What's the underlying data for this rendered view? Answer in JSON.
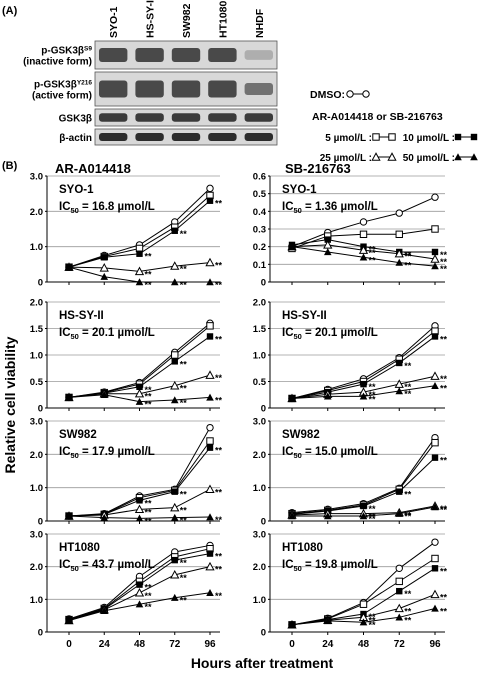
{
  "figure": {
    "panel_a_label": "(A)",
    "panel_b_label": "(B)"
  },
  "western_blot": {
    "lanes": [
      "SYO-1",
      "HS-SY-II",
      "SW982",
      "HT1080",
      "NHDF"
    ],
    "rows": [
      {
        "label_lines": [
          "p-GSK3β",
          "(inactive form)"
        ],
        "sup": "S9"
      },
      {
        "label_lines": [
          "p-GSK3β",
          "(active form)"
        ],
        "sup": "Y216"
      },
      {
        "label_lines": [
          "GSK3β"
        ],
        "sup": ""
      },
      {
        "label_lines": [
          "β-actin"
        ],
        "sup": ""
      }
    ]
  },
  "legend": {
    "dmso": "DMSO:",
    "compound": "AR-A014418 or SB-216763",
    "dose_5": "5 µmol/L :",
    "dose_10": "10 µmol/L :",
    "dose_25": "25 µmol/L :",
    "dose_50": "50 µmol/L :"
  },
  "axes_text": {
    "ylabel": "Relative cell viability",
    "xlabel": "Hours after treatment",
    "col_titles": [
      "AR-A014418",
      "SB-216763"
    ]
  },
  "chart_data": [
    {
      "type": "line",
      "cell_line": "SYO-1",
      "ic50_prefix": "IC",
      "ic50_sub": "50",
      "ic50_value": " = 16.8 µmol/L",
      "x": [
        0,
        24,
        48,
        72,
        96
      ],
      "ylim": [
        0,
        3.0
      ],
      "yticks": [
        "0",
        "1.0",
        "2.0",
        "3.0"
      ],
      "series": [
        {
          "values": [
            0.42,
            0.75,
            1.05,
            1.7,
            2.65
          ],
          "marker": "open-circle"
        },
        {
          "values": [
            0.42,
            0.72,
            0.95,
            1.55,
            2.45
          ],
          "marker": "open-square"
        },
        {
          "values": [
            0.42,
            0.7,
            0.8,
            1.45,
            2.3
          ],
          "marker": "filled-square"
        },
        {
          "values": [
            0.42,
            0.4,
            0.3,
            0.45,
            0.55
          ],
          "marker": "open-triangle"
        },
        {
          "values": [
            0.42,
            0.15,
            0.0,
            0.0,
            0.0
          ],
          "marker": "filled-triangle"
        }
      ]
    },
    {
      "type": "line",
      "cell_line": "SYO-1",
      "ic50_prefix": "IC",
      "ic50_sub": "50",
      "ic50_value": " = 1.36 µmol/L",
      "x": [
        0,
        24,
        48,
        72,
        96
      ],
      "ylim": [
        0,
        0.6
      ],
      "yticks": [
        "0",
        "0.1",
        "0.2",
        "0.3",
        "0.4",
        "0.5",
        "0.6"
      ],
      "series": [
        {
          "values": [
            0.2,
            0.28,
            0.34,
            0.39,
            0.48
          ],
          "marker": "open-circle"
        },
        {
          "values": [
            0.19,
            0.26,
            0.27,
            0.27,
            0.3
          ],
          "marker": "open-square"
        },
        {
          "values": [
            0.21,
            0.24,
            0.2,
            0.17,
            0.17
          ],
          "marker": "filled-square"
        },
        {
          "values": [
            0.2,
            0.21,
            0.18,
            0.16,
            0.13
          ],
          "marker": "open-triangle"
        },
        {
          "values": [
            0.2,
            0.17,
            0.14,
            0.11,
            0.09
          ],
          "marker": "filled-triangle"
        }
      ]
    },
    {
      "type": "line",
      "cell_line": "HS-SY-II",
      "ic50_prefix": "IC",
      "ic50_sub": "50",
      "ic50_value": " = 20.1 µmol/L",
      "x": [
        0,
        24,
        48,
        72,
        96
      ],
      "ylim": [
        0,
        2.0
      ],
      "yticks": [
        "0",
        "0.5",
        "1.0",
        "1.5",
        "2.0"
      ],
      "series": [
        {
          "values": [
            0.2,
            0.3,
            0.48,
            1.05,
            1.6
          ],
          "marker": "open-circle"
        },
        {
          "values": [
            0.2,
            0.29,
            0.45,
            1.0,
            1.55
          ],
          "marker": "open-square"
        },
        {
          "values": [
            0.2,
            0.28,
            0.4,
            0.88,
            1.35
          ],
          "marker": "filled-square"
        },
        {
          "values": [
            0.2,
            0.27,
            0.27,
            0.42,
            0.62
          ],
          "marker": "open-triangle"
        },
        {
          "values": [
            0.2,
            0.25,
            0.12,
            0.15,
            0.2
          ],
          "marker": "filled-triangle"
        }
      ]
    },
    {
      "type": "line",
      "cell_line": "HS-SY-II",
      "ic50_prefix": "IC",
      "ic50_sub": "50",
      "ic50_value": " = 20.1 µmol/L",
      "x": [
        0,
        24,
        48,
        72,
        96
      ],
      "ylim": [
        0,
        2.0
      ],
      "yticks": [
        "0",
        "0.5",
        "1.0",
        "1.5",
        "2.0"
      ],
      "series": [
        {
          "values": [
            0.18,
            0.35,
            0.55,
            0.95,
            1.55
          ],
          "marker": "open-circle"
        },
        {
          "values": [
            0.18,
            0.33,
            0.5,
            0.92,
            1.45
          ],
          "marker": "open-square"
        },
        {
          "values": [
            0.18,
            0.3,
            0.45,
            0.85,
            1.35
          ],
          "marker": "filled-square"
        },
        {
          "values": [
            0.18,
            0.26,
            0.3,
            0.45,
            0.6
          ],
          "marker": "open-triangle"
        },
        {
          "values": [
            0.18,
            0.22,
            0.22,
            0.32,
            0.42
          ],
          "marker": "filled-triangle"
        }
      ]
    },
    {
      "type": "line",
      "cell_line": "SW982",
      "ic50_prefix": "IC",
      "ic50_sub": "50",
      "ic50_value": " = 17.9 µmol/L",
      "x": [
        0,
        24,
        48,
        72,
        96
      ],
      "ylim": [
        0,
        3.0
      ],
      "yticks": [
        "0",
        "1.0",
        "2.0",
        "3.0"
      ],
      "series": [
        {
          "values": [
            0.15,
            0.22,
            0.75,
            0.95,
            2.8
          ],
          "marker": "open-circle"
        },
        {
          "values": [
            0.15,
            0.2,
            0.7,
            0.92,
            2.4
          ],
          "marker": "open-square"
        },
        {
          "values": [
            0.15,
            0.2,
            0.62,
            0.88,
            2.2
          ],
          "marker": "filled-square"
        },
        {
          "values": [
            0.15,
            0.18,
            0.35,
            0.4,
            0.95
          ],
          "marker": "open-triangle"
        },
        {
          "values": [
            0.15,
            0.1,
            0.08,
            0.1,
            0.12
          ],
          "marker": "filled-triangle"
        }
      ]
    },
    {
      "type": "line",
      "cell_line": "SW982",
      "ic50_prefix": "IC",
      "ic50_sub": "50",
      "ic50_value": " = 15.0 µmol/L",
      "x": [
        0,
        24,
        48,
        72,
        96
      ],
      "ylim": [
        0,
        3.0
      ],
      "yticks": [
        "0",
        "1.0",
        "2.0",
        "3.0"
      ],
      "series": [
        {
          "values": [
            0.25,
            0.35,
            0.52,
            0.98,
            2.5
          ],
          "marker": "open-circle"
        },
        {
          "values": [
            0.22,
            0.32,
            0.48,
            0.95,
            2.35
          ],
          "marker": "open-square"
        },
        {
          "values": [
            0.2,
            0.3,
            0.45,
            0.88,
            1.9
          ],
          "marker": "filled-square"
        },
        {
          "values": [
            0.18,
            0.22,
            0.22,
            0.25,
            0.45
          ],
          "marker": "open-triangle"
        },
        {
          "values": [
            0.15,
            0.15,
            0.15,
            0.22,
            0.42
          ],
          "marker": "filled-triangle"
        }
      ]
    },
    {
      "type": "line",
      "cell_line": "HT1080",
      "ic50_prefix": "IC",
      "ic50_sub": "50",
      "ic50_value": " = 43.7 µmol/L",
      "x": [
        0,
        24,
        48,
        72,
        96
      ],
      "ylim": [
        0,
        3.0
      ],
      "yticks": [
        "0",
        "1.0",
        "2.0",
        "3.0"
      ],
      "series": [
        {
          "values": [
            0.4,
            0.75,
            1.7,
            2.45,
            2.65
          ],
          "marker": "open-circle"
        },
        {
          "values": [
            0.38,
            0.72,
            1.55,
            2.3,
            2.55
          ],
          "marker": "open-square"
        },
        {
          "values": [
            0.38,
            0.7,
            1.45,
            2.2,
            2.4
          ],
          "marker": "filled-square"
        },
        {
          "values": [
            0.35,
            0.68,
            1.2,
            1.75,
            2.0
          ],
          "marker": "open-triangle"
        },
        {
          "values": [
            0.35,
            0.65,
            0.85,
            1.05,
            1.2
          ],
          "marker": "filled-triangle"
        }
      ]
    },
    {
      "type": "line",
      "cell_line": "HT1080",
      "ic50_prefix": "IC",
      "ic50_sub": "50",
      "ic50_value": " = 19.8 µmol/L",
      "x": [
        0,
        24,
        48,
        72,
        96
      ],
      "ylim": [
        0,
        3.0
      ],
      "yticks": [
        "0",
        "1.0",
        "2.0",
        "3.0"
      ],
      "series": [
        {
          "values": [
            0.22,
            0.42,
            0.9,
            1.95,
            2.75
          ],
          "marker": "open-circle"
        },
        {
          "values": [
            0.22,
            0.4,
            0.85,
            1.55,
            2.25
          ],
          "marker": "open-square"
        },
        {
          "values": [
            0.22,
            0.38,
            0.55,
            1.25,
            1.95
          ],
          "marker": "filled-square"
        },
        {
          "values": [
            0.22,
            0.36,
            0.45,
            0.72,
            1.15
          ],
          "marker": "open-triangle"
        },
        {
          "values": [
            0.22,
            0.34,
            0.3,
            0.45,
            0.72
          ],
          "marker": "filled-triangle"
        }
      ]
    }
  ],
  "significance_mark": "**",
  "single_mark": "*"
}
